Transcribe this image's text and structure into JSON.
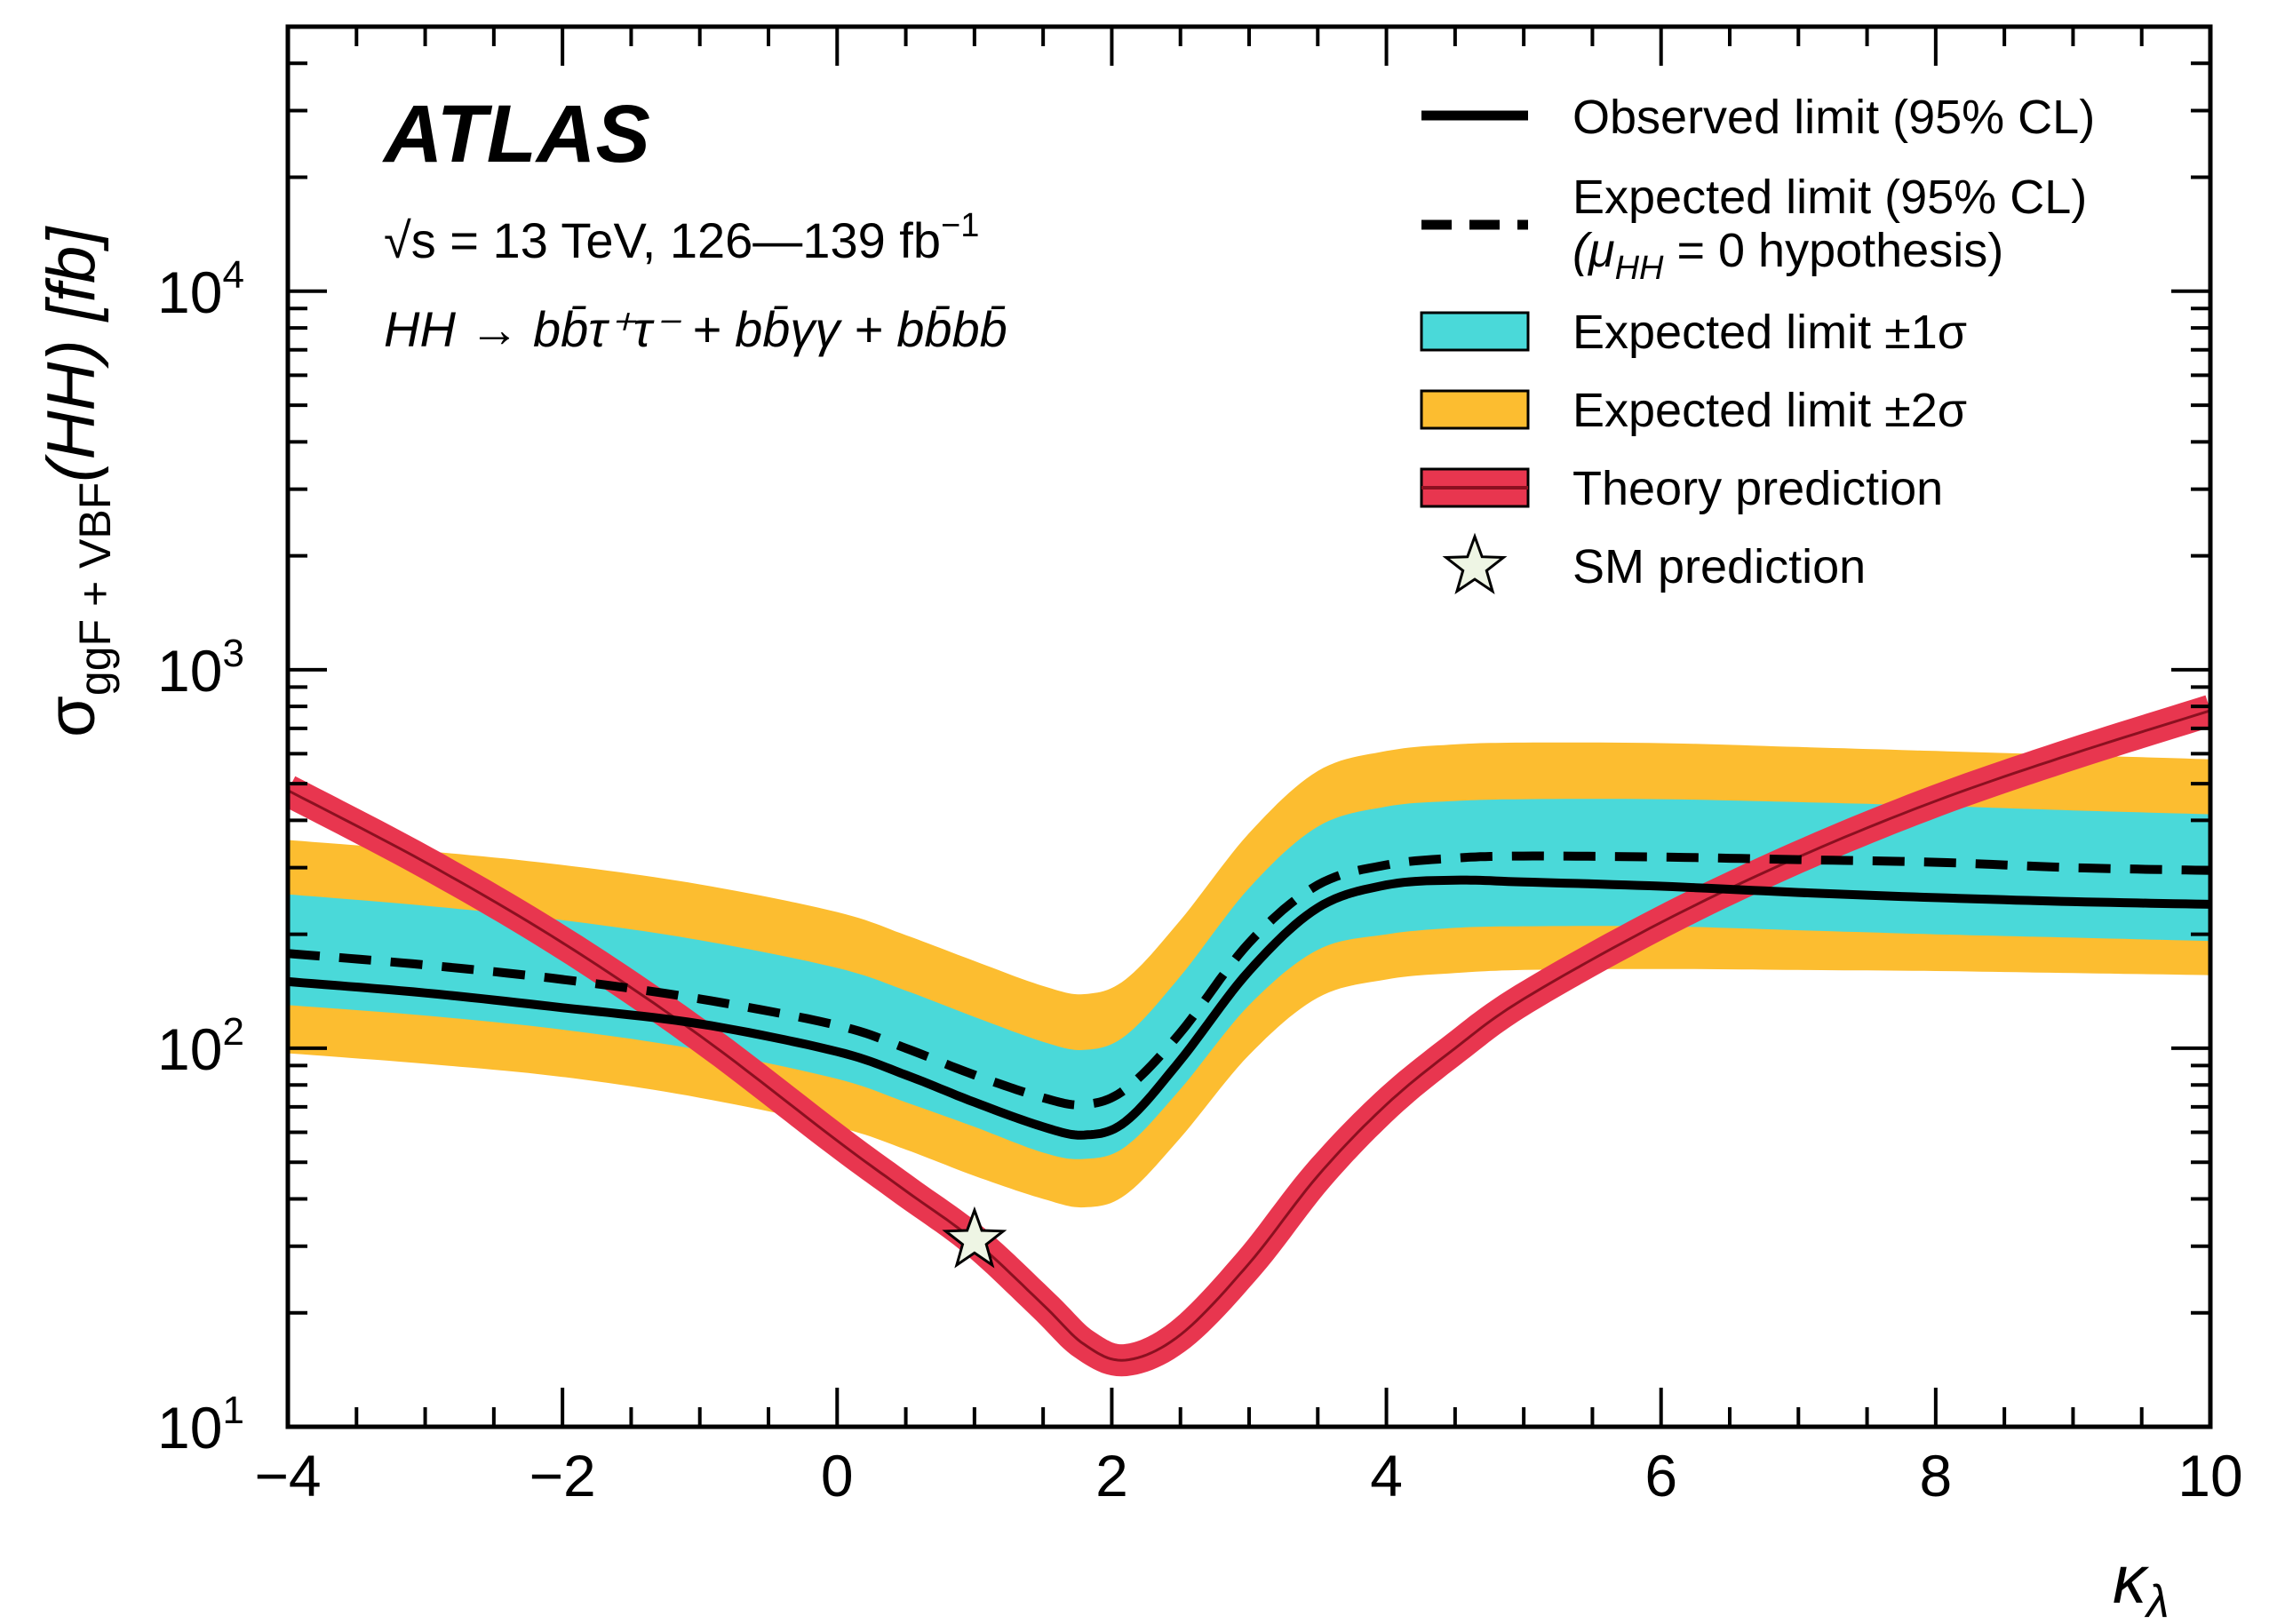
{
  "chart_data": {
    "type": "line",
    "experiment": "ATLAS",
    "energy_text": "s = 13 TeV, 126—139 fb",
    "energy_sqrt": "√",
    "energy_exp": "−1",
    "channel_text": "HH → bb̄τ⁺τ⁻ + bb̄γγ + bb̄bb̄",
    "xlabel": "κ",
    "xlabel_sub": "λ",
    "ylabel_main": "σ",
    "ylabel_sub": "ggF + VBF",
    "ylabel_rest": "(HH) [fb]",
    "x_ticks": [
      -4,
      -2,
      0,
      2,
      4,
      6,
      8,
      10
    ],
    "x_tick_labels": [
      "−4",
      "−2",
      "0",
      "2",
      "4",
      "6",
      "8",
      "10"
    ],
    "y_ticks": [
      10,
      100,
      1000,
      10000
    ],
    "y_tick_base": "10",
    "y_tick_exps": [
      "1",
      "2",
      "3",
      "4"
    ],
    "xlim": [
      -4,
      10
    ],
    "ylim": [
      10,
      50000
    ],
    "yscale": "log",
    "legend_position": "top-right",
    "legend": [
      {
        "key": "observed",
        "label": "Observed limit (95% CL)"
      },
      {
        "key": "expected",
        "label": "Expected limit (95% CL)",
        "label2": "(μ",
        "label2_sub": "HH",
        "label2_rest": " = 0 hypothesis)"
      },
      {
        "key": "band1",
        "label": "Expected limit ±1σ"
      },
      {
        "key": "band2",
        "label": "Expected limit ±2σ"
      },
      {
        "key": "theory",
        "label": "Theory prediction"
      },
      {
        "key": "sm",
        "label": "SM prediction"
      }
    ],
    "colors": {
      "band1": "#4ad9d9",
      "band2": "#fcbd30",
      "theory_band": "#e8364f",
      "theory_line": "#8b1020",
      "line": "#000000",
      "star": "#eef5e4"
    },
    "x": [
      -4,
      -3,
      -2,
      -1,
      0,
      0.5,
      1,
      1.5,
      1.8,
      2.1,
      2.5,
      3,
      3.5,
      4,
      4.5,
      5,
      6,
      7,
      8,
      9,
      10
    ],
    "series": [
      {
        "key": "observed",
        "values": [
          150,
          140,
          128,
          116,
          98,
          85,
          72,
          62,
          59,
          64,
          93,
          160,
          235,
          270,
          278,
          275,
          268,
          258,
          250,
          244,
          240
        ]
      },
      {
        "key": "expected",
        "values": [
          178,
          166,
          152,
          135,
          115,
          100,
          85,
          74,
          71,
          78,
          110,
          190,
          270,
          305,
          318,
          322,
          320,
          315,
          310,
          300,
          295
        ]
      },
      {
        "key": "band1_lo",
        "values": [
          130,
          122,
          112,
          99,
          83,
          72,
          62,
          53,
          51,
          55,
          78,
          130,
          182,
          200,
          208,
          210,
          210,
          205,
          200,
          196,
          192
        ]
      },
      {
        "key": "band1_hi",
        "values": [
          255,
          238,
          218,
          193,
          163,
          142,
          121,
          104,
          99,
          108,
          155,
          265,
          385,
          435,
          450,
          455,
          455,
          447,
          437,
          425,
          415
        ]
      },
      {
        "key": "band2_lo",
        "values": [
          97,
          91,
          84,
          74,
          62,
          54,
          46,
          40,
          38,
          41,
          58,
          96,
          136,
          152,
          158,
          161,
          162,
          161,
          160,
          158,
          156
        ]
      },
      {
        "key": "band2_hi",
        "values": [
          355,
          332,
          305,
          271,
          229,
          199,
          170,
          146,
          139,
          152,
          218,
          370,
          540,
          610,
          635,
          642,
          640,
          625,
          610,
          595,
          580
        ]
      },
      {
        "key": "theory",
        "values": [
          480,
          310,
          190,
          108,
          57,
          42,
          31,
          21,
          16.5,
          15,
          17.5,
          27,
          46,
          71,
          100,
          135,
          215,
          320,
          450,
          600,
          780
        ]
      }
    ],
    "sm_point": {
      "x": 1,
      "y": 31.05
    }
  }
}
